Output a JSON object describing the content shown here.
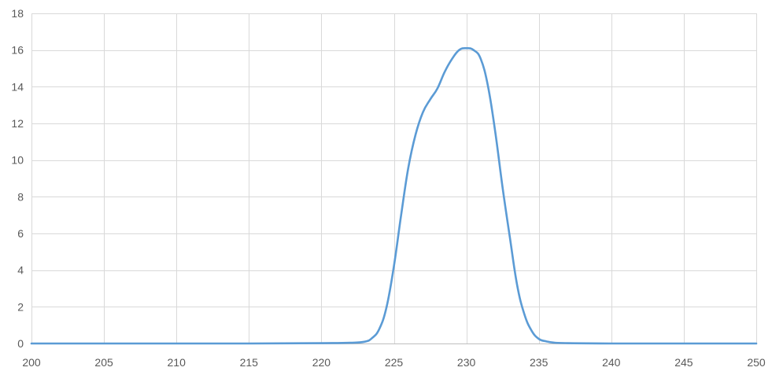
{
  "chart_data": {
    "type": "line",
    "title": "",
    "xlabel": "",
    "ylabel": "",
    "xlim": [
      200,
      250
    ],
    "ylim": [
      0,
      18
    ],
    "x_ticks": [
      200,
      205,
      210,
      215,
      220,
      225,
      230,
      235,
      240,
      245,
      250
    ],
    "y_ticks": [
      0,
      2,
      4,
      6,
      8,
      10,
      12,
      14,
      16,
      18
    ],
    "grid": true,
    "legend": "none",
    "colors": {
      "series": "#5b9bd5",
      "grid": "#d9d9d9",
      "tick_text": "#595959"
    },
    "series": [
      {
        "x": [
          200,
          205,
          210,
          215,
          220,
          222,
          223,
          223.5,
          224,
          224.5,
          225,
          225.5,
          226,
          226.5,
          227,
          227.5,
          228,
          228.5,
          229,
          229.5,
          230,
          230.5,
          231,
          231.5,
          232,
          232.5,
          233,
          233.5,
          234,
          234.5,
          235,
          235.5,
          236,
          237,
          240,
          245,
          250
        ],
        "y": [
          0,
          0,
          0,
          0,
          0.02,
          0.04,
          0.1,
          0.3,
          0.8,
          2.0,
          4.2,
          7.0,
          9.6,
          11.4,
          12.6,
          13.3,
          13.9,
          14.8,
          15.5,
          16.0,
          16.1,
          16.0,
          15.5,
          14.0,
          11.5,
          8.5,
          5.8,
          3.2,
          1.6,
          0.7,
          0.25,
          0.12,
          0.05,
          0.02,
          0,
          0,
          0
        ]
      }
    ]
  }
}
